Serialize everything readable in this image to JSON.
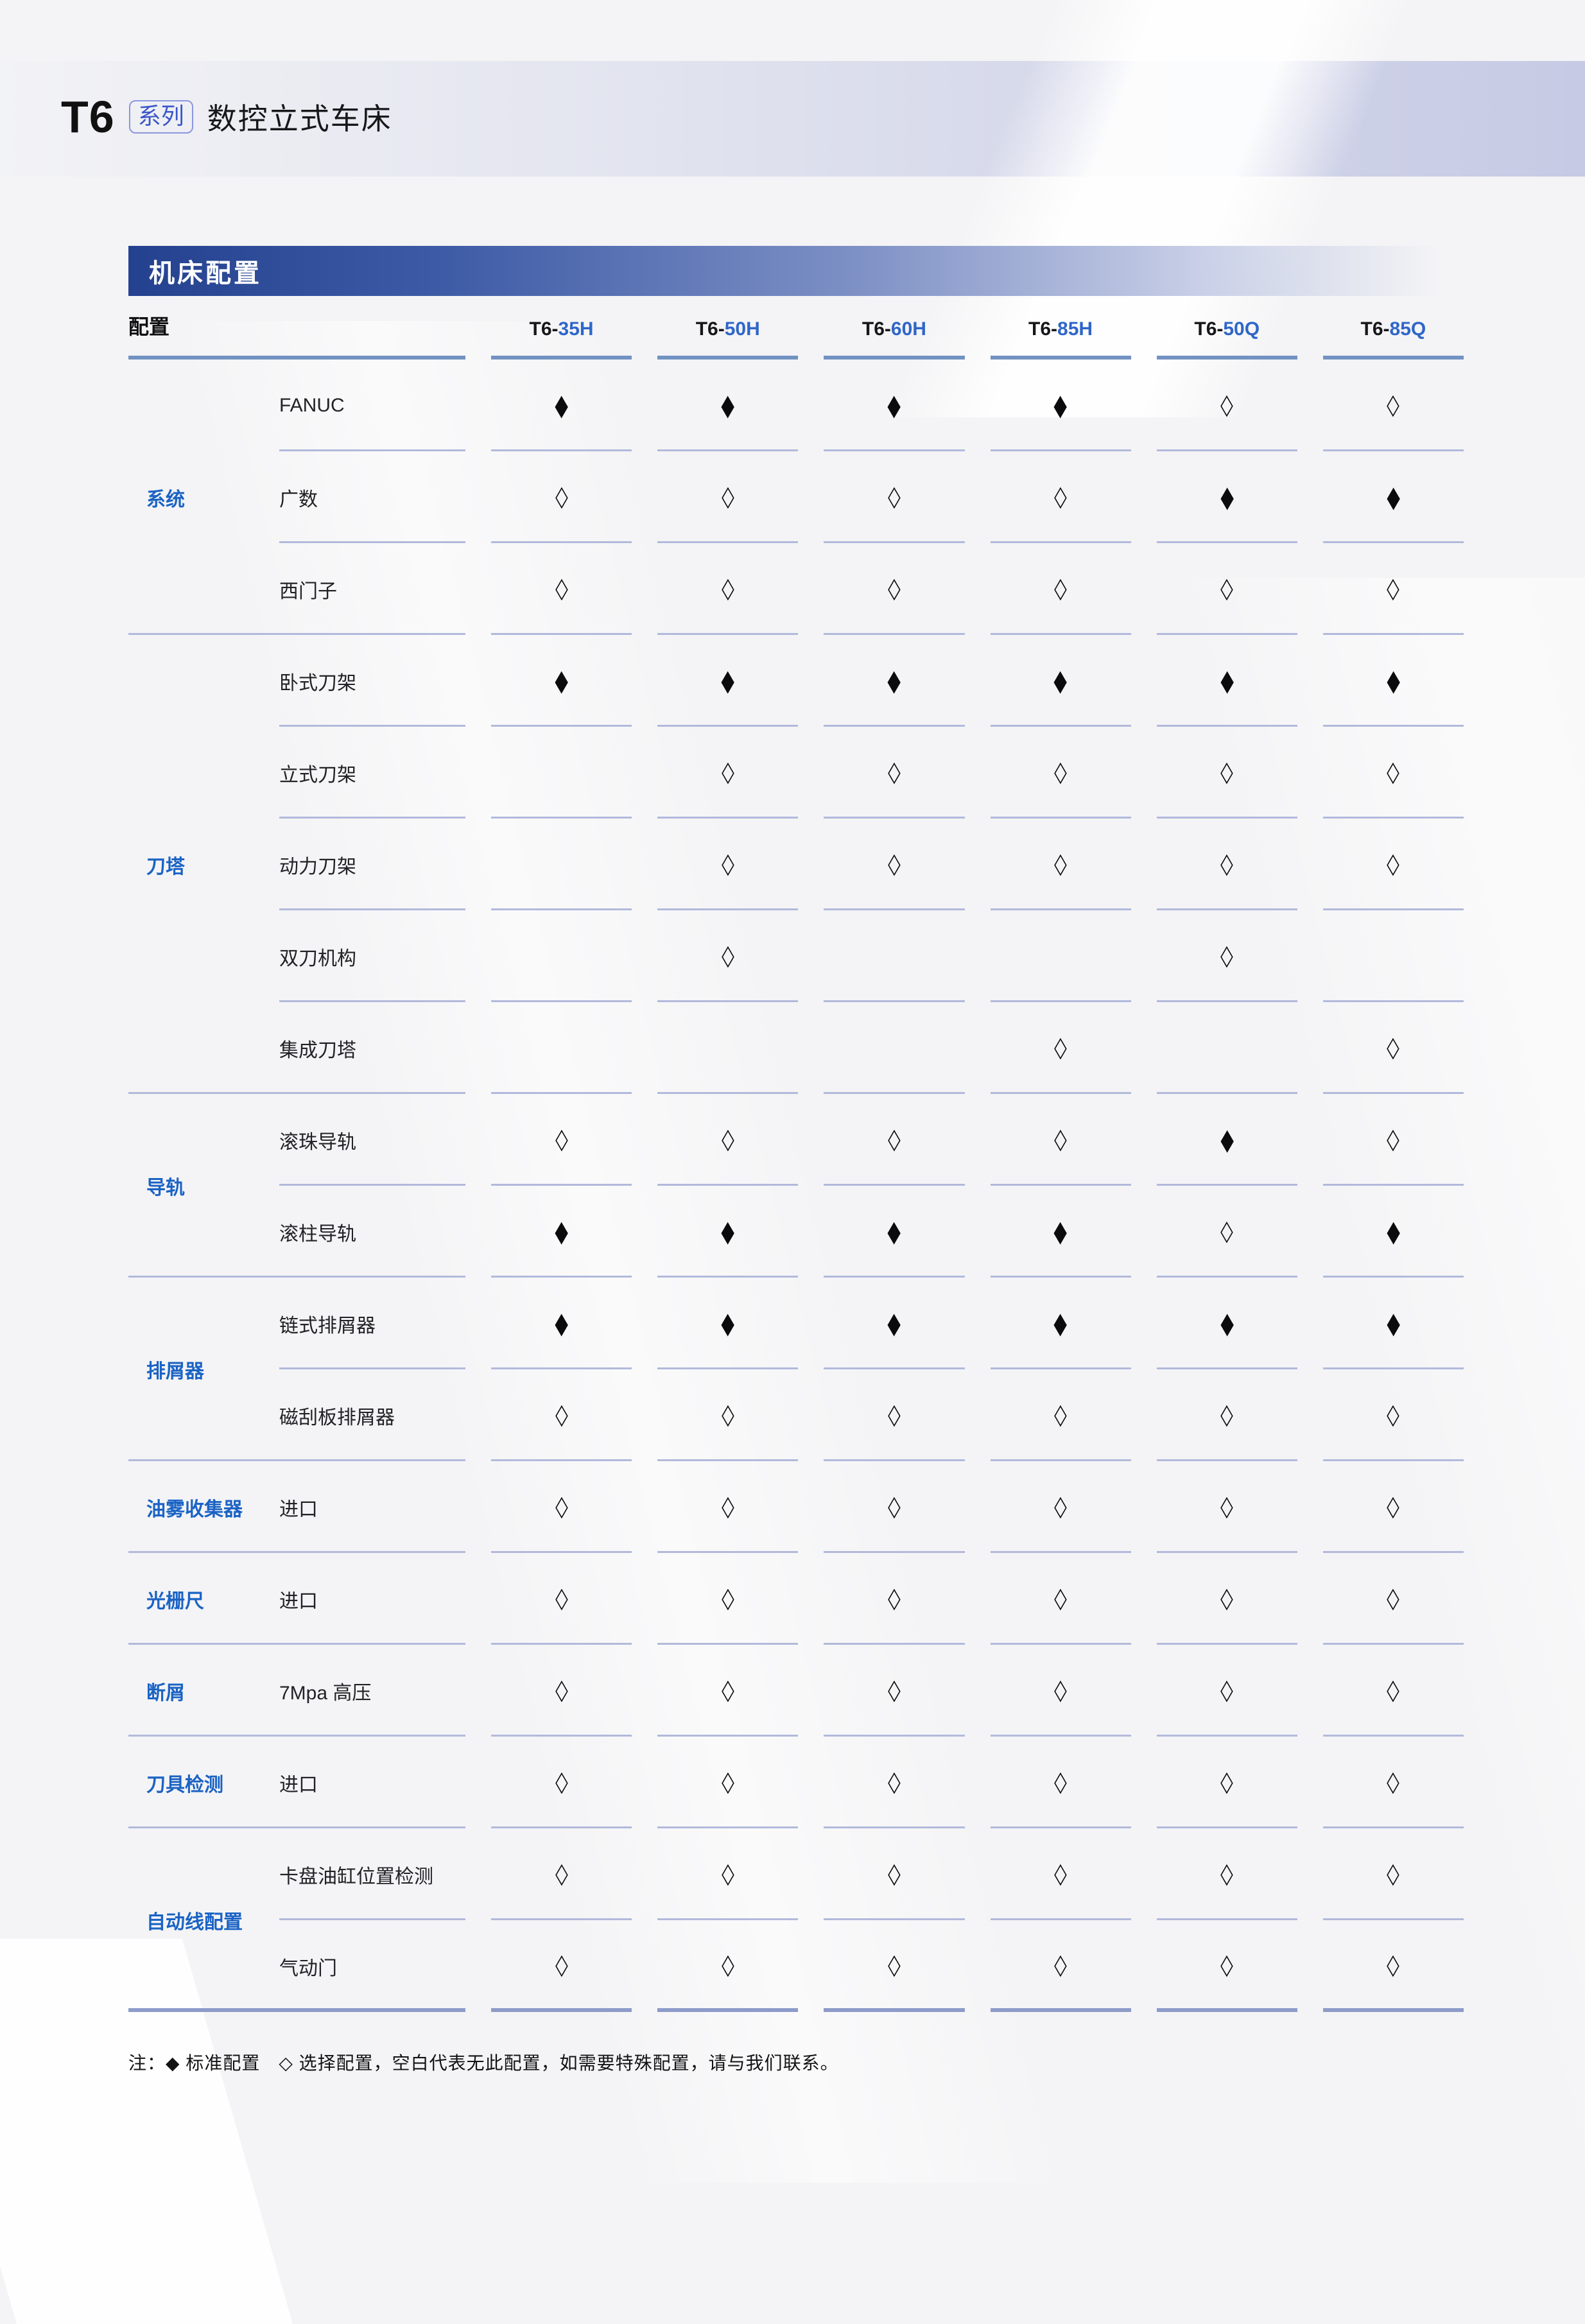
{
  "header": {
    "series": "T6",
    "badge": "系列",
    "subtitle": "数控立式车床"
  },
  "section": {
    "title": "机床配置",
    "footnote": "注：◆ 标准配置　◇ 选择配置，空白代表无此配置，如需要特殊配置，请与我们联系。"
  },
  "legend": {
    "standard_symbol": "◆",
    "standard_meaning": "标准配置",
    "optional_symbol": "◇",
    "optional_meaning": "选择配置"
  },
  "table": {
    "config_header": "配置",
    "columns": [
      {
        "prefix": "T6-",
        "suffix": "35H"
      },
      {
        "prefix": "T6-",
        "suffix": "50H"
      },
      {
        "prefix": "T6-",
        "suffix": "60H"
      },
      {
        "prefix": "T6-",
        "suffix": "85H"
      },
      {
        "prefix": "T6-",
        "suffix": "50Q"
      },
      {
        "prefix": "T6-",
        "suffix": "85Q"
      }
    ],
    "groups": [
      {
        "label": "系统",
        "rows": [
          {
            "label": "FANUC",
            "cells": [
              "standard",
              "standard",
              "standard",
              "standard",
              "optional",
              "optional"
            ]
          },
          {
            "label": "广数",
            "cells": [
              "optional",
              "optional",
              "optional",
              "optional",
              "standard",
              "standard"
            ]
          },
          {
            "label": "西门子",
            "cells": [
              "optional",
              "optional",
              "optional",
              "optional",
              "optional",
              "optional"
            ]
          }
        ]
      },
      {
        "label": "刀塔",
        "rows": [
          {
            "label": "卧式刀架",
            "cells": [
              "standard",
              "standard",
              "standard",
              "standard",
              "standard",
              "standard"
            ]
          },
          {
            "label": "立式刀架",
            "cells": [
              "",
              "optional",
              "optional",
              "optional",
              "optional",
              "optional"
            ]
          },
          {
            "label": "动力刀架",
            "cells": [
              "",
              "optional",
              "optional",
              "optional",
              "optional",
              "optional"
            ]
          },
          {
            "label": "双刀机构",
            "cells": [
              "",
              "optional",
              "",
              "",
              "optional",
              ""
            ]
          },
          {
            "label": "集成刀塔",
            "cells": [
              "",
              "",
              "",
              "optional",
              "",
              "optional"
            ]
          }
        ]
      },
      {
        "label": "导轨",
        "rows": [
          {
            "label": "滚珠导轨",
            "cells": [
              "optional",
              "optional",
              "optional",
              "optional",
              "standard",
              "optional"
            ]
          },
          {
            "label": "滚柱导轨",
            "cells": [
              "standard",
              "standard",
              "standard",
              "standard",
              "optional",
              "standard"
            ]
          }
        ]
      },
      {
        "label": "排屑器",
        "rows": [
          {
            "label": "链式排屑器",
            "cells": [
              "standard",
              "standard",
              "standard",
              "standard",
              "standard",
              "standard"
            ]
          },
          {
            "label": "磁刮板排屑器",
            "cells": [
              "optional",
              "optional",
              "optional",
              "optional",
              "optional",
              "optional"
            ]
          }
        ]
      },
      {
        "label": "油雾收集器",
        "rows": [
          {
            "label": "进口",
            "cells": [
              "optional",
              "optional",
              "optional",
              "optional",
              "optional",
              "optional"
            ]
          }
        ]
      },
      {
        "label": "光栅尺",
        "rows": [
          {
            "label": "进口",
            "cells": [
              "optional",
              "optional",
              "optional",
              "optional",
              "optional",
              "optional"
            ]
          }
        ]
      },
      {
        "label": "断屑",
        "rows": [
          {
            "label": "7Mpa 高压",
            "cells": [
              "optional",
              "optional",
              "optional",
              "optional",
              "optional",
              "optional"
            ]
          }
        ]
      },
      {
        "label": "刀具检测",
        "rows": [
          {
            "label": "进口",
            "cells": [
              "optional",
              "optional",
              "optional",
              "optional",
              "optional",
              "optional"
            ]
          }
        ]
      },
      {
        "label": "自动线配置",
        "rows": [
          {
            "label": "卡盘油缸位置检测",
            "cells": [
              "optional",
              "optional",
              "optional",
              "optional",
              "optional",
              "optional"
            ]
          },
          {
            "label": "气动门",
            "cells": [
              "optional",
              "optional",
              "optional",
              "optional",
              "optional",
              "optional"
            ]
          }
        ]
      }
    ]
  },
  "colors": {
    "banner_blue": "#24418f",
    "accent_blue": "#1b63c4",
    "accent_royal": "#3a55c8",
    "model_blue": "#2f66c8",
    "divider": "#b2b9db",
    "header_underline": "#7292c2",
    "bottom_line": "#8d9bc9"
  }
}
